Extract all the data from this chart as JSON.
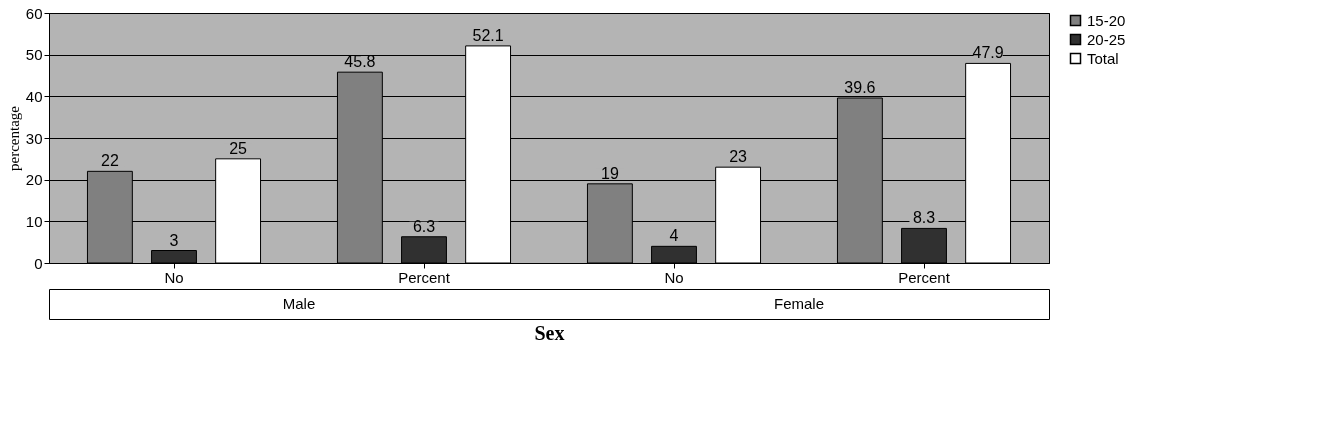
{
  "chart_data": {
    "type": "bar",
    "xlabel": "Sex",
    "ylabel": "percentage",
    "categories": [
      "No",
      "Percent",
      "No",
      "Percent"
    ],
    "annotations": [
      "Male",
      "Female"
    ],
    "series": [
      {
        "name": "15-20",
        "color": "#808080",
        "values": [
          22,
          45.8,
          19,
          39.6
        ]
      },
      {
        "name": "20-25",
        "color": "#303030",
        "values": [
          3,
          6.3,
          4,
          8.3
        ]
      },
      {
        "name": "Total",
        "color": "#ffffff",
        "values": [
          25,
          52.1,
          23,
          47.9
        ]
      }
    ],
    "ylim": [
      0,
      60
    ],
    "yticks": [
      0,
      10,
      20,
      30,
      40,
      50,
      60
    ],
    "grid": "y",
    "legend": "right",
    "data_labels": true
  }
}
